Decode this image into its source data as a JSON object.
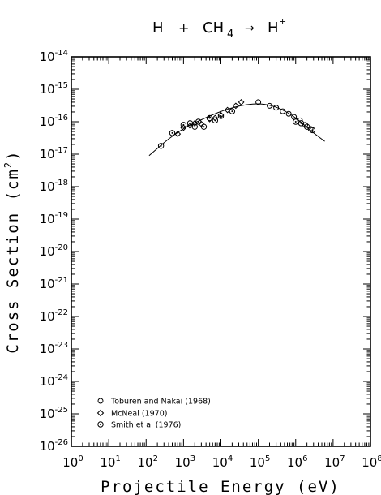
{
  "chart_data": {
    "type": "scatter",
    "title_parts": {
      "lhs1": "H",
      "plus": "+",
      "lhs2": "CH",
      "lhs2_sub": "4",
      "arrow": "→",
      "rhs": "H",
      "rhs_sup": "+"
    },
    "xlabel": "Projectile Energy (eV)",
    "ylabel_main": "Cross Section (cm",
    "ylabel_sup": "2",
    "ylabel_close": ")",
    "x_scale": "log",
    "y_scale": "log",
    "xlim": [
      1,
      100000000
    ],
    "ylim": [
      1e-26,
      1e-14
    ],
    "x_ticks": [
      {
        "base": "10",
        "exp": "0",
        "value": 1
      },
      {
        "base": "10",
        "exp": "1",
        "value": 10
      },
      {
        "base": "10",
        "exp": "2",
        "value": 100
      },
      {
        "base": "10",
        "exp": "3",
        "value": 1000
      },
      {
        "base": "10",
        "exp": "4",
        "value": 10000
      },
      {
        "base": "10",
        "exp": "5",
        "value": 100000
      },
      {
        "base": "10",
        "exp": "6",
        "value": 1000000
      },
      {
        "base": "10",
        "exp": "7",
        "value": 10000000
      },
      {
        "base": "10",
        "exp": "8",
        "value": 100000000
      }
    ],
    "y_ticks": [
      {
        "base": "10",
        "exp": "-26",
        "value": 1e-26
      },
      {
        "base": "10",
        "exp": "-25",
        "value": 1e-25
      },
      {
        "base": "10",
        "exp": "-24",
        "value": 1e-24
      },
      {
        "base": "10",
        "exp": "-23",
        "value": 1e-23
      },
      {
        "base": "10",
        "exp": "-22",
        "value": 1e-22
      },
      {
        "base": "10",
        "exp": "-21",
        "value": 1e-21
      },
      {
        "base": "10",
        "exp": "-20",
        "value": 1e-20
      },
      {
        "base": "10",
        "exp": "-19",
        "value": 1e-19
      },
      {
        "base": "10",
        "exp": "-18",
        "value": 1e-18
      },
      {
        "base": "10",
        "exp": "-17",
        "value": 1e-17
      },
      {
        "base": "10",
        "exp": "-16",
        "value": 1e-16
      },
      {
        "base": "10",
        "exp": "-15",
        "value": 1e-15
      },
      {
        "base": "10",
        "exp": "-14",
        "value": 1e-14
      }
    ],
    "grid": false,
    "legend_position": "bottom-left",
    "series": [
      {
        "name": "Toburen and Nakai (1968)",
        "marker": "circle",
        "points": [
          {
            "x": 100000,
            "y": 4e-16
          },
          {
            "x": 200000,
            "y": 3.1e-16
          },
          {
            "x": 300000,
            "y": 2.7e-16
          },
          {
            "x": 450000,
            "y": 2.1e-16
          },
          {
            "x": 650000,
            "y": 1.75e-16
          },
          {
            "x": 900000,
            "y": 1.4e-16
          },
          {
            "x": 1300000,
            "y": 1.1e-16
          },
          {
            "x": 1800000,
            "y": 8e-17
          },
          {
            "x": 2500000,
            "y": 6e-17
          }
        ]
      },
      {
        "name": "McNeal (1970)",
        "marker": "diamond",
        "points": [
          {
            "x": 700,
            "y": 4.2e-17
          },
          {
            "x": 1000,
            "y": 6.5e-17
          },
          {
            "x": 1500,
            "y": 7.5e-17
          },
          {
            "x": 2000,
            "y": 9e-17
          },
          {
            "x": 3000,
            "y": 8.5e-17
          },
          {
            "x": 5000,
            "y": 1.2e-16
          },
          {
            "x": 7000,
            "y": 1.3e-16
          },
          {
            "x": 10000,
            "y": 1.6e-16
          },
          {
            "x": 15000,
            "y": 2.3e-16
          },
          {
            "x": 25000,
            "y": 3.1e-16
          },
          {
            "x": 35000,
            "y": 4e-16
          }
        ]
      },
      {
        "name": "Smith et al (1976)",
        "marker": "circle-dot",
        "points": [
          {
            "x": 250,
            "y": 1.8e-17
          },
          {
            "x": 500,
            "y": 4.5e-17
          },
          {
            "x": 1000,
            "y": 8e-17
          },
          {
            "x": 1500,
            "y": 9e-17
          },
          {
            "x": 2000,
            "y": 7e-17
          },
          {
            "x": 2500,
            "y": 1e-16
          },
          {
            "x": 3500,
            "y": 7e-17
          },
          {
            "x": 5000,
            "y": 1.3e-16
          },
          {
            "x": 7000,
            "y": 1.1e-16
          },
          {
            "x": 10000,
            "y": 1.5e-16
          },
          {
            "x": 20000,
            "y": 2.1e-16
          },
          {
            "x": 1000000,
            "y": 1e-16
          },
          {
            "x": 1400000,
            "y": 9e-17
          },
          {
            "x": 2000000,
            "y": 7e-17
          },
          {
            "x": 2800000,
            "y": 5.5e-17
          }
        ]
      }
    ],
    "fit_curve": [
      {
        "x": 120,
        "y": 9e-18
      },
      {
        "x": 200,
        "y": 1.5e-17
      },
      {
        "x": 400,
        "y": 3e-17
      },
      {
        "x": 800,
        "y": 5.2e-17
      },
      {
        "x": 1500,
        "y": 8e-17
      },
      {
        "x": 3000,
        "y": 1.15e-16
      },
      {
        "x": 6000,
        "y": 1.65e-16
      },
      {
        "x": 12000,
        "y": 2.25e-16
      },
      {
        "x": 25000,
        "y": 2.9e-16
      },
      {
        "x": 50000,
        "y": 3.4e-16
      },
      {
        "x": 100000,
        "y": 3.6e-16
      },
      {
        "x": 200000,
        "y": 3.3e-16
      },
      {
        "x": 400000,
        "y": 2.5e-16
      },
      {
        "x": 800000,
        "y": 1.6e-16
      },
      {
        "x": 1500000,
        "y": 9e-17
      },
      {
        "x": 3000000,
        "y": 4.5e-17
      },
      {
        "x": 6000000,
        "y": 2.5e-17
      }
    ]
  }
}
